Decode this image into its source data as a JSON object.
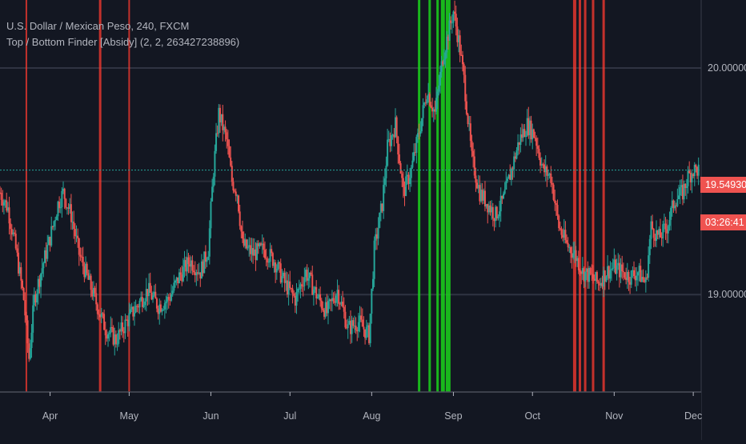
{
  "legend": {
    "symbol_line": "U.S. Dollar / Mexican Peso, 240, FXCM",
    "indicator_line": "Top / Bottom Finder [Absidy] (2, 2, 263427238896)"
  },
  "price_scale": {
    "last_price": "19.54930",
    "countdown": "03:26:41",
    "last_price_color": "#ef5350"
  },
  "chart_data": {
    "type": "candlestick",
    "title": "U.S. Dollar / Mexican Peso, 240, FXCM",
    "indicator": "Top / Bottom Finder [Absidy] (2, 2, 263427238896)",
    "x_ticks": [
      "Apr",
      "May",
      "Jun",
      "Jul",
      "Aug",
      "Sep",
      "Oct",
      "Nov",
      "Dec"
    ],
    "y_ticks": [
      "20.00000",
      "19.00000"
    ],
    "ylim": [
      18.57,
      20.3
    ],
    "x_range": [
      "2023-03-13",
      "2023-12-04"
    ],
    "last_price": 19.5493,
    "grid": true,
    "colors": {
      "up": "#26a69a",
      "down": "#ef5350",
      "top_signal": "#ff3b30",
      "bottom_signal": "#1bd31b",
      "price_line": "#26a69a"
    },
    "price_path": [
      [
        "2023-03-13",
        19.45
      ],
      [
        "2023-03-16",
        19.38
      ],
      [
        "2023-03-19",
        19.2
      ],
      [
        "2023-03-22",
        18.98
      ],
      [
        "2023-03-24",
        18.72
      ],
      [
        "2023-03-26",
        18.98
      ],
      [
        "2023-03-29",
        19.12
      ],
      [
        "2023-04-01",
        19.25
      ],
      [
        "2023-04-04",
        19.4
      ],
      [
        "2023-04-06",
        19.45
      ],
      [
        "2023-04-09",
        19.35
      ],
      [
        "2023-04-12",
        19.18
      ],
      [
        "2023-04-15",
        19.08
      ],
      [
        "2023-04-18",
        18.98
      ],
      [
        "2023-04-22",
        18.85
      ],
      [
        "2023-04-26",
        18.8
      ],
      [
        "2023-04-30",
        18.88
      ],
      [
        "2023-05-04",
        18.95
      ],
      [
        "2023-05-08",
        19.02
      ],
      [
        "2023-05-12",
        18.95
      ],
      [
        "2023-05-16",
        18.98
      ],
      [
        "2023-05-20",
        19.08
      ],
      [
        "2023-05-24",
        19.15
      ],
      [
        "2023-05-28",
        19.1
      ],
      [
        "2023-05-31",
        19.2
      ],
      [
        "2023-06-02",
        19.55
      ],
      [
        "2023-06-04",
        19.8
      ],
      [
        "2023-06-07",
        19.68
      ],
      [
        "2023-06-09",
        19.5
      ],
      [
        "2023-06-11",
        19.45
      ],
      [
        "2023-06-13",
        19.22
      ],
      [
        "2023-06-17",
        19.18
      ],
      [
        "2023-06-21",
        19.2
      ],
      [
        "2023-06-25",
        19.15
      ],
      [
        "2023-06-29",
        19.05
      ],
      [
        "2023-07-03",
        18.98
      ],
      [
        "2023-07-07",
        19.1
      ],
      [
        "2023-07-11",
        19.0
      ],
      [
        "2023-07-15",
        18.92
      ],
      [
        "2023-07-19",
        19.02
      ],
      [
        "2023-07-23",
        18.85
      ],
      [
        "2023-07-27",
        18.88
      ],
      [
        "2023-07-31",
        18.82
      ],
      [
        "2023-08-02",
        19.2
      ],
      [
        "2023-08-05",
        19.4
      ],
      [
        "2023-08-07",
        19.65
      ],
      [
        "2023-08-10",
        19.75
      ],
      [
        "2023-08-13",
        19.45
      ],
      [
        "2023-08-16",
        19.55
      ],
      [
        "2023-08-19",
        19.72
      ],
      [
        "2023-08-22",
        19.9
      ],
      [
        "2023-08-25",
        19.8
      ],
      [
        "2023-08-28",
        20.05
      ],
      [
        "2023-08-30",
        20.15
      ],
      [
        "2023-09-01",
        20.25
      ],
      [
        "2023-09-03",
        20.12
      ],
      [
        "2023-09-05",
        19.95
      ],
      [
        "2023-09-08",
        19.6
      ],
      [
        "2023-09-11",
        19.45
      ],
      [
        "2023-09-14",
        19.4
      ],
      [
        "2023-09-17",
        19.35
      ],
      [
        "2023-09-20",
        19.42
      ],
      [
        "2023-09-23",
        19.55
      ],
      [
        "2023-09-26",
        19.68
      ],
      [
        "2023-09-29",
        19.75
      ],
      [
        "2023-10-02",
        19.7
      ],
      [
        "2023-10-05",
        19.55
      ],
      [
        "2023-10-08",
        19.52
      ],
      [
        "2023-10-11",
        19.3
      ],
      [
        "2023-10-14",
        19.22
      ],
      [
        "2023-10-17",
        19.18
      ],
      [
        "2023-10-20",
        19.1
      ],
      [
        "2023-10-23",
        19.08
      ],
      [
        "2023-10-26",
        19.05
      ],
      [
        "2023-10-29",
        19.1
      ],
      [
        "2023-11-01",
        19.12
      ],
      [
        "2023-11-04",
        19.1
      ],
      [
        "2023-11-07",
        19.08
      ],
      [
        "2023-11-10",
        19.1
      ],
      [
        "2023-11-13",
        19.05
      ],
      [
        "2023-11-15",
        19.3
      ],
      [
        "2023-11-18",
        19.25
      ],
      [
        "2023-11-21",
        19.3
      ],
      [
        "2023-11-24",
        19.42
      ],
      [
        "2023-11-27",
        19.45
      ],
      [
        "2023-11-29",
        19.52
      ],
      [
        "2023-12-01",
        19.55
      ],
      [
        "2023-12-03",
        19.55
      ]
    ],
    "top_signals": [
      {
        "date": "2023-03-23",
        "width": 2
      },
      {
        "date": "2023-04-20",
        "width": 3
      },
      {
        "date": "2023-05-01",
        "width": 2
      },
      {
        "date": "2023-10-17",
        "width": 4
      },
      {
        "date": "2023-10-19",
        "width": 3
      },
      {
        "date": "2023-10-21",
        "width": 3
      },
      {
        "date": "2023-10-24",
        "width": 3
      },
      {
        "date": "2023-10-28",
        "width": 3
      }
    ],
    "bottom_signals": [
      {
        "date": "2023-08-19",
        "width": 3
      },
      {
        "date": "2023-08-23",
        "width": 3
      },
      {
        "date": "2023-08-26",
        "width": 3
      },
      {
        "date": "2023-08-28",
        "width": 5
      },
      {
        "date": "2023-08-30",
        "width": 6
      }
    ]
  }
}
